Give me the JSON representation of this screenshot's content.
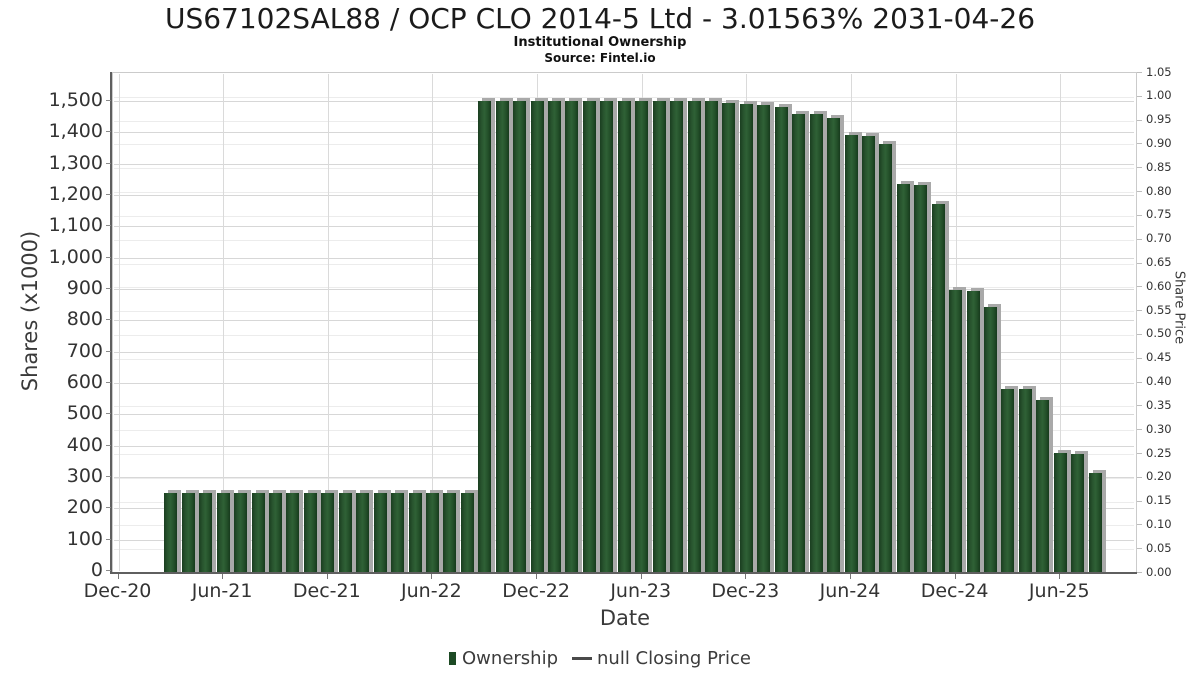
{
  "header": {
    "title": "US67102SAL88 / OCP CLO 2014-5 Ltd - 3.01563% 2031-04-26",
    "subtitle": "Institutional Ownership",
    "source": "Source: Fintel.io"
  },
  "axes": {
    "xlabel": "Date",
    "ylabel_left": "Shares (x1000)",
    "ylabel_right": "Share Price"
  },
  "legend": {
    "ownership_label": "Ownership",
    "price_label": "null Closing Price"
  },
  "chart_data": {
    "type": "bar",
    "title": "US67102SAL88 / OCP CLO 2014-5 Ltd - 3.01563% 2031-04-26",
    "subtitle": "Institutional Ownership",
    "source": "Source: Fintel.io",
    "xlabel": "Date",
    "ylabel_left": "Shares (x1000)",
    "ylabel_right": "Share Price",
    "grid": true,
    "legend_position": "bottom",
    "bar_color": "#1d4a24",
    "bar_shadow_color": "#a9a9a9",
    "x_tick_labels": [
      "Dec-20",
      "Jun-21",
      "Dec-21",
      "Jun-22",
      "Dec-22",
      "Jun-23",
      "Dec-23",
      "Jun-24",
      "Dec-24",
      "Jun-25"
    ],
    "x_tick_month_offsets": [
      0,
      6,
      12,
      18,
      24,
      30,
      36,
      42,
      48,
      54
    ],
    "y_left_ticks": [
      "0",
      "100",
      "200",
      "300",
      "400",
      "500",
      "600",
      "700",
      "800",
      "900",
      "1,000",
      "1,100",
      "1,200",
      "1,300",
      "1,400",
      "1,500"
    ],
    "y_left_tick_values": [
      0,
      100,
      200,
      300,
      400,
      500,
      600,
      700,
      800,
      900,
      1000,
      1100,
      1200,
      1300,
      1400,
      1500
    ],
    "y_left_range": [
      0,
      1500
    ],
    "y_right_ticks": [
      "0.00",
      "0.05",
      "0.10",
      "0.15",
      "0.20",
      "0.25",
      "0.30",
      "0.35",
      "0.40",
      "0.45",
      "0.50",
      "0.55",
      "0.60",
      "0.65",
      "0.70",
      "0.75",
      "0.80",
      "0.85",
      "0.90",
      "0.95",
      "1.00",
      "1.05"
    ],
    "y_right_tick_values": [
      0,
      0.05,
      0.1,
      0.15,
      0.2,
      0.25,
      0.3,
      0.35,
      0.4,
      0.45,
      0.5,
      0.55,
      0.6,
      0.65,
      0.7,
      0.75,
      0.8,
      0.85,
      0.9,
      0.95,
      1.0,
      1.05
    ],
    "y_right_range": [
      0,
      1.05
    ],
    "x_start_month_offset": 3,
    "series": [
      {
        "name": "Ownership",
        "type": "bar",
        "unit": "shares x1000",
        "x": [
          "Mar-21",
          "Apr-21",
          "May-21",
          "Jun-21",
          "Jul-21",
          "Aug-21",
          "Sep-21",
          "Oct-21",
          "Nov-21",
          "Dec-21",
          "Jan-22",
          "Feb-22",
          "Mar-22",
          "Apr-22",
          "May-22",
          "Jun-22",
          "Jul-22",
          "Aug-22",
          "Sep-22",
          "Oct-22",
          "Nov-22",
          "Dec-22",
          "Jan-23",
          "Feb-23",
          "Mar-23",
          "Apr-23",
          "May-23",
          "Jun-23",
          "Jul-23",
          "Aug-23",
          "Sep-23",
          "Oct-23",
          "Nov-23",
          "Dec-23",
          "Jan-24",
          "Feb-24",
          "Mar-24",
          "Apr-24",
          "May-24",
          "Jun-24",
          "Jul-24",
          "Aug-24",
          "Sep-24",
          "Oct-24",
          "Nov-24",
          "Dec-24",
          "Jan-25",
          "Feb-25",
          "Mar-25",
          "Apr-25",
          "May-25",
          "Jun-25",
          "Jul-25",
          "Aug-25"
        ],
        "values": [
          248,
          248,
          248,
          248,
          248,
          248,
          248,
          248,
          248,
          248,
          248,
          248,
          248,
          248,
          248,
          248,
          248,
          248,
          1500,
          1500,
          1500,
          1500,
          1500,
          1500,
          1500,
          1500,
          1500,
          1500,
          1500,
          1500,
          1500,
          1500,
          1495,
          1490,
          1488,
          1480,
          1460,
          1458,
          1447,
          1392,
          1390,
          1363,
          1235,
          1233,
          1172,
          898,
          893,
          842,
          582,
          580,
          545,
          378,
          375,
          312
        ]
      },
      {
        "name": "null Closing Price",
        "type": "line",
        "values": []
      }
    ]
  }
}
